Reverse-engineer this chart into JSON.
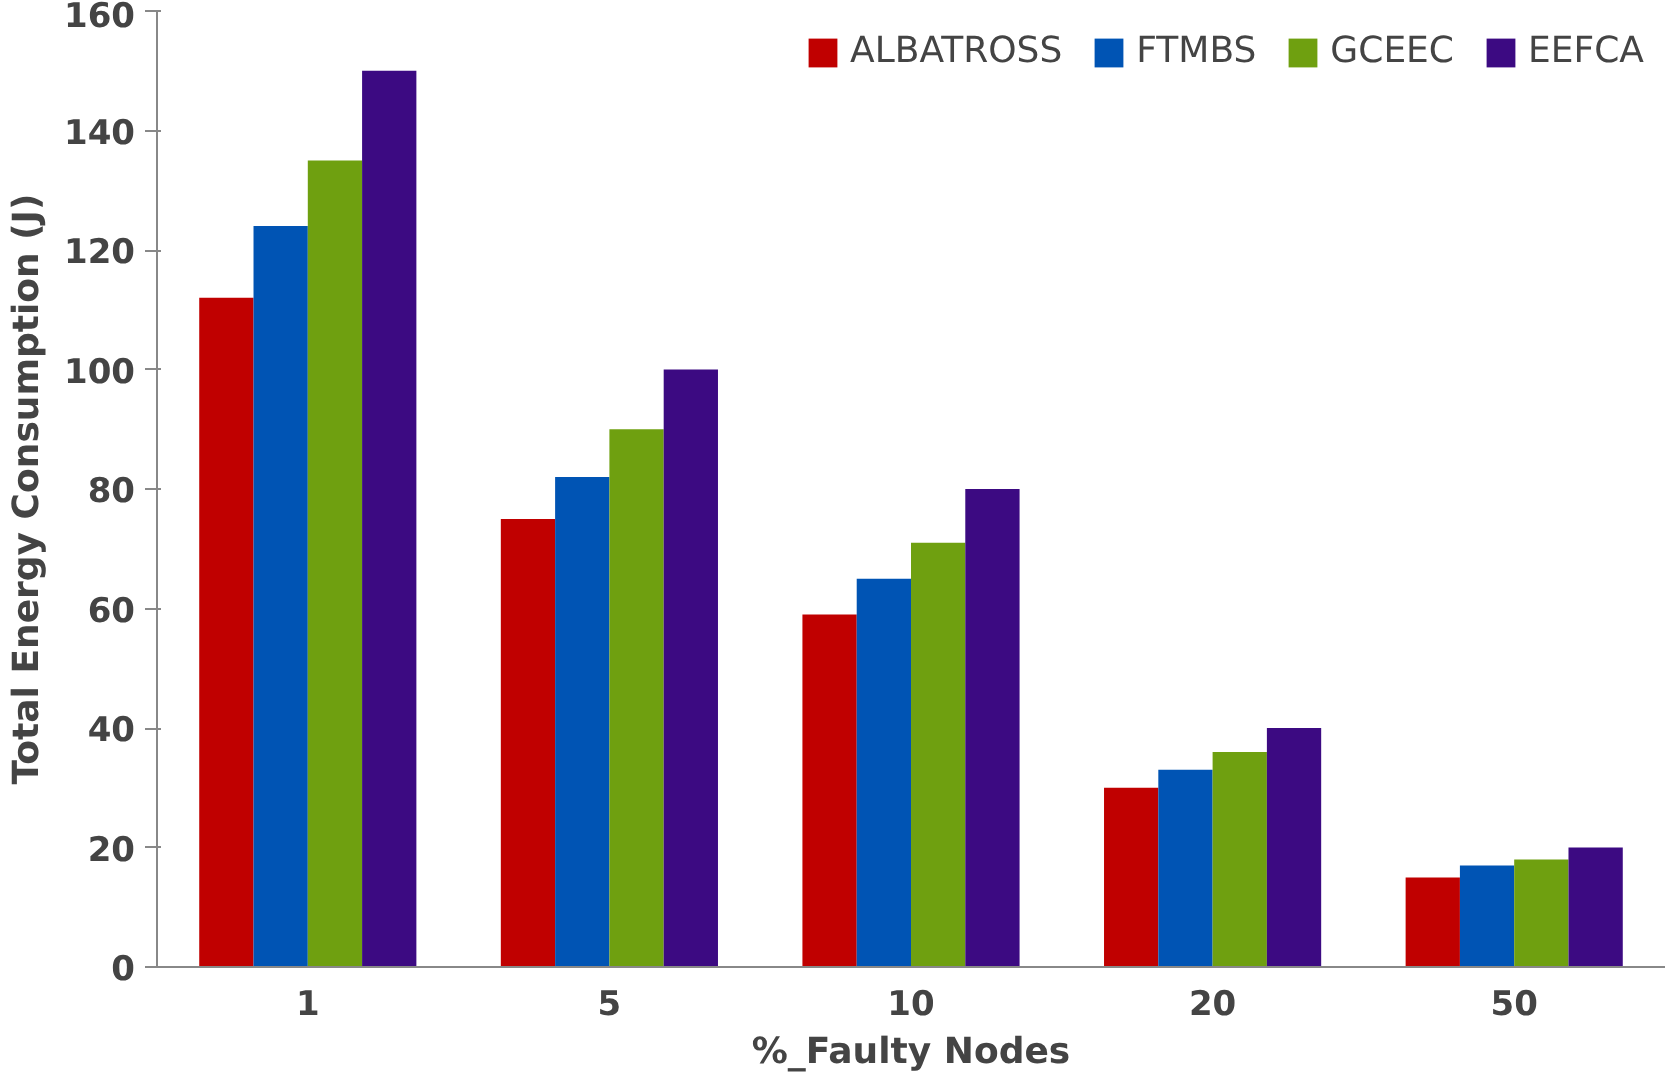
{
  "chart_data": {
    "type": "bar",
    "xlabel": "%_Faulty Nodes",
    "ylabel": "Total Energy Consumption (J)",
    "categories": [
      "1",
      "5",
      "10",
      "20",
      "50"
    ],
    "series": [
      {
        "name": "ALBATROSS",
        "color": "#c00000",
        "values": [
          112,
          75,
          59,
          30,
          15
        ]
      },
      {
        "name": "FTMBS",
        "color": "#0054b4",
        "values": [
          124,
          82,
          65,
          33,
          17
        ]
      },
      {
        "name": "GCEEC",
        "color": "#6fa010",
        "values": [
          135,
          90,
          71,
          36,
          18
        ]
      },
      {
        "name": "EEFCA",
        "color": "#3c0a82",
        "values": [
          150,
          100,
          80,
          40,
          20
        ]
      }
    ],
    "ylim": [
      0,
      160
    ],
    "yticks": [
      0,
      20,
      40,
      60,
      80,
      100,
      120,
      140,
      160
    ],
    "grid": false,
    "legend": "top right"
  }
}
